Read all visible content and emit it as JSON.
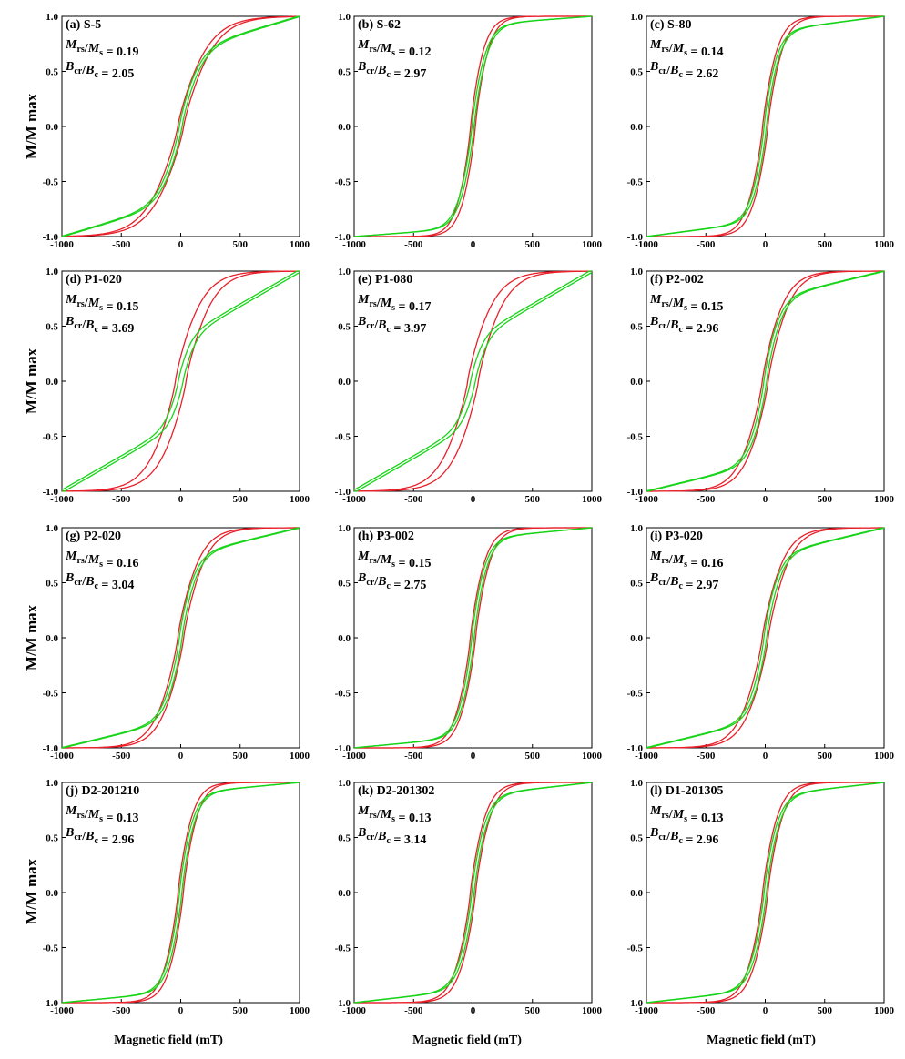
{
  "figure": {
    "ylabel": "M/M max",
    "xlabel": "Magnetic field (mT)",
    "x_ticks": [
      "-1000",
      "-500",
      "0",
      "500",
      "1000"
    ],
    "y_ticks": [
      "-1.0",
      "-0.5",
      "0.0",
      "0.5",
      "1.0"
    ],
    "colors": {
      "hysteresis": "#e8202a",
      "induced": "#18d418"
    }
  },
  "chart_data": [
    {
      "type": "line",
      "label": "(a) S-5",
      "mrs_ms": "0.19",
      "bcr_bc": "2.05",
      "xlim": [
        -1000,
        1000
      ],
      "ylim": [
        -1,
        1
      ],
      "red_ms": 300,
      "green_ms": 190,
      "green_slope": 0.00032,
      "width": 25
    },
    {
      "type": "line",
      "label": "(b) S-62",
      "mrs_ms": "0.12",
      "bcr_bc": "2.97",
      "xlim": [
        -1000,
        1000
      ],
      "ylim": [
        -1,
        1
      ],
      "red_ms": 140,
      "green_ms": 140,
      "green_slope": 8e-05,
      "width": 20
    },
    {
      "type": "line",
      "label": "(c) S-80",
      "mrs_ms": "0.14",
      "bcr_bc": "2.62",
      "xlim": [
        -1000,
        1000
      ],
      "ylim": [
        -1,
        1
      ],
      "red_ms": 155,
      "green_ms": 130,
      "green_slope": 0.00014,
      "width": 22
    },
    {
      "type": "line",
      "label": "(d) P1-020",
      "mrs_ms": "0.15",
      "bcr_bc": "3.69",
      "xlim": [
        -1000,
        1000
      ],
      "ylim": [
        -1,
        1
      ],
      "red_ms": 260,
      "green_ms": 120,
      "green_slope": 0.00062,
      "width": 45
    },
    {
      "type": "line",
      "label": "(e) P1-080",
      "mrs_ms": "0.17",
      "bcr_bc": "3.97",
      "xlim": [
        -1000,
        1000
      ],
      "ylim": [
        -1,
        1
      ],
      "red_ms": 260,
      "green_ms": 120,
      "green_slope": 0.00062,
      "width": 45
    },
    {
      "type": "line",
      "label": "(f) P2-002",
      "mrs_ms": "0.15",
      "bcr_bc": "2.96",
      "xlim": [
        -1000,
        1000
      ],
      "ylim": [
        -1,
        1
      ],
      "red_ms": 220,
      "green_ms": 150,
      "green_slope": 0.00026,
      "width": 25
    },
    {
      "type": "line",
      "label": "(g) P2-020",
      "mrs_ms": "0.16",
      "bcr_bc": "3.04",
      "xlim": [
        -1000,
        1000
      ],
      "ylim": [
        -1,
        1
      ],
      "red_ms": 220,
      "green_ms": 150,
      "green_slope": 0.00026,
      "width": 25
    },
    {
      "type": "line",
      "label": "(h) P3-002",
      "mrs_ms": "0.15",
      "bcr_bc": "2.75",
      "xlim": [
        -1000,
        1000
      ],
      "ylim": [
        -1,
        1
      ],
      "red_ms": 155,
      "green_ms": 135,
      "green_slope": 0.0001,
      "width": 22
    },
    {
      "type": "line",
      "label": "(i) P3-020",
      "mrs_ms": "0.16",
      "bcr_bc": "2.97",
      "xlim": [
        -1000,
        1000
      ],
      "ylim": [
        -1,
        1
      ],
      "red_ms": 220,
      "green_ms": 145,
      "green_slope": 0.00026,
      "width": 25
    },
    {
      "type": "line",
      "label": "(j) D2-201210",
      "mrs_ms": "0.13",
      "bcr_bc": "2.96",
      "xlim": [
        -1000,
        1000
      ],
      "ylim": [
        -1,
        1
      ],
      "red_ms": 150,
      "green_ms": 135,
      "green_slope": 0.0001,
      "width": 22
    },
    {
      "type": "line",
      "label": "(k) D2-201302",
      "mrs_ms": "0.13",
      "bcr_bc": "3.14",
      "xlim": [
        -1000,
        1000
      ],
      "ylim": [
        -1,
        1
      ],
      "red_ms": 160,
      "green_ms": 140,
      "green_slope": 0.00012,
      "width": 22
    },
    {
      "type": "line",
      "label": "(l) D1-201305",
      "mrs_ms": "0.13",
      "bcr_bc": "2.96",
      "xlim": [
        -1000,
        1000
      ],
      "ylim": [
        -1,
        1
      ],
      "red_ms": 160,
      "green_ms": 140,
      "green_slope": 0.00012,
      "width": 22
    }
  ]
}
